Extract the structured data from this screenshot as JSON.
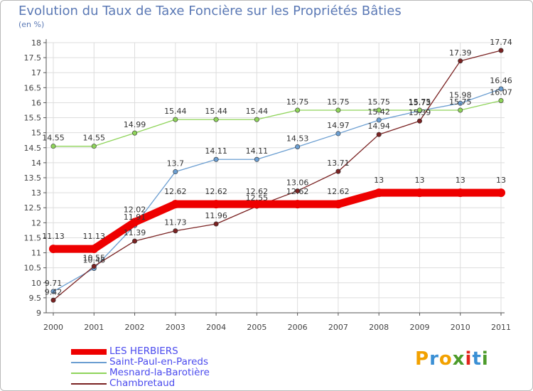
{
  "title": "Evolution du Taux de Taxe Foncière sur les Propriétés Bâties",
  "unit_label": "(en %)",
  "logo": {
    "text": "Proxiti",
    "colors": [
      "#f2a100",
      "#3a8fd4",
      "#f2a100",
      "#4c9b2a",
      "#e2231a",
      "#3a8fd4",
      "#4c9b2a"
    ]
  },
  "chart_data": {
    "type": "line",
    "title": "Evolution du Taux de Taxe Foncière sur les Propriétés Bâties",
    "ylabel": "(en %)",
    "xlabel": "",
    "ylim": [
      9,
      18
    ],
    "ytick_step": 0.5,
    "grid": true,
    "categories": [
      "2000",
      "2001",
      "2002",
      "2003",
      "2004",
      "2005",
      "2006",
      "2007",
      "2008",
      "2009",
      "2010",
      "2011"
    ],
    "series": [
      {
        "name": "LES HERBIERS",
        "color": "#ee0000",
        "values": [
          11.13,
          11.13,
          12.02,
          12.62,
          12.62,
          12.62,
          12.62,
          12.62,
          13,
          13,
          13,
          13
        ],
        "labels": [
          "11.13",
          "11.13",
          "12.02",
          "12.62",
          "12.62",
          "12.62",
          "12.62",
          "12.62",
          "13",
          "13",
          "13",
          "13"
        ]
      },
      {
        "name": "Saint-Paul-en-Pareds",
        "color": "#6b9ed1",
        "values": [
          9.71,
          10.48,
          11.91,
          13.7,
          14.11,
          14.11,
          14.53,
          14.97,
          15.42,
          15.73,
          15.98,
          16.46
        ],
        "labels": [
          "9.71",
          "10.48",
          "11.91",
          "13.7",
          "14.11",
          "14.11",
          "14.53",
          "14.97",
          "15.42",
          "15.73",
          "15.98",
          "16.46"
        ]
      },
      {
        "name": "Mesnard-la-Barotière",
        "color": "#8fd45a",
        "values": [
          14.55,
          14.55,
          14.99,
          15.44,
          15.44,
          15.44,
          15.75,
          15.75,
          15.75,
          15.75,
          15.75,
          16.07
        ],
        "labels": [
          "14.55",
          "14.55",
          "14.99",
          "15.44",
          "15.44",
          "15.44",
          "15.75",
          "15.75",
          "15.75",
          "15.75",
          "15.75",
          "16.07"
        ]
      },
      {
        "name": "Chambretaud",
        "color": "#7a2222",
        "values": [
          9.42,
          10.55,
          11.39,
          11.73,
          11.96,
          12.55,
          13.06,
          13.71,
          14.94,
          15.39,
          17.39,
          17.74
        ],
        "labels": [
          "9.42",
          "10.55",
          "11.39",
          "11.73",
          "11.96",
          "12.55",
          "13.06",
          "13.71",
          "14.94",
          "15.39",
          "17.39",
          "17.74"
        ]
      }
    ]
  }
}
